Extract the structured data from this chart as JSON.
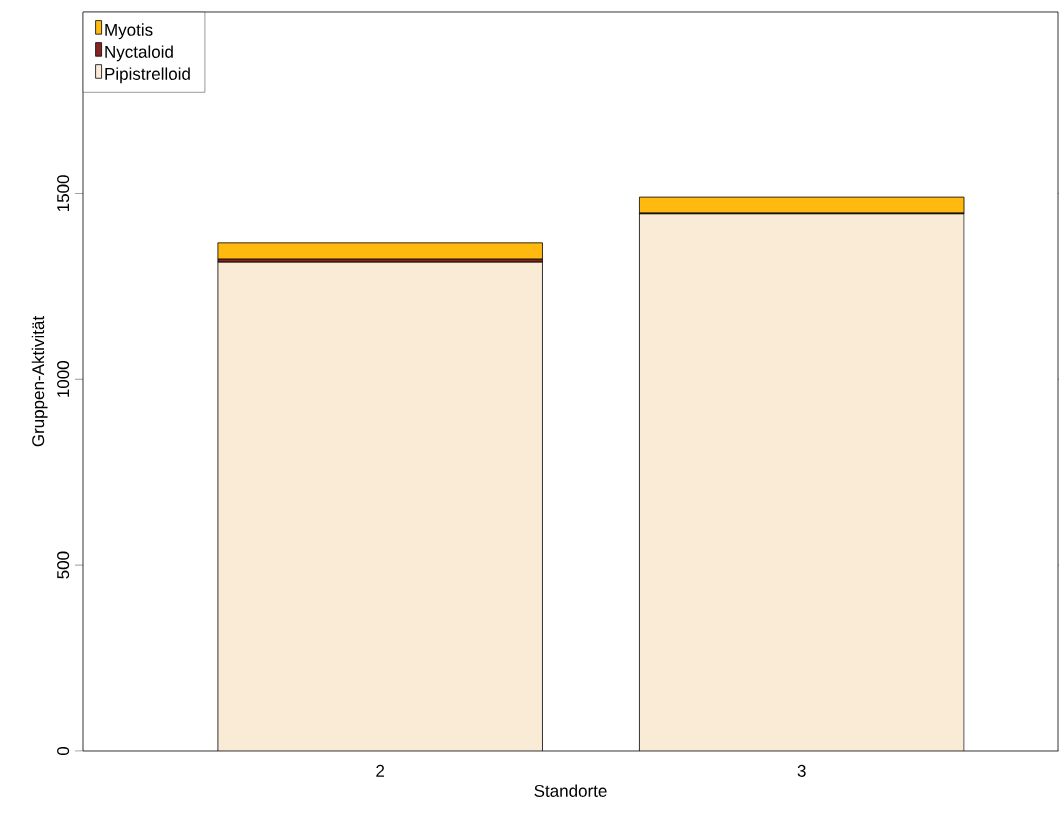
{
  "chart_data": {
    "type": "bar",
    "stacked": true,
    "xlabel": "Standorte",
    "ylabel": "Gruppen-Aktivität",
    "categories": [
      "2",
      "3"
    ],
    "series": [
      {
        "name": "Pipistrelloid",
        "color": "#faebd7",
        "values": [
          1315,
          1445
        ]
      },
      {
        "name": "Nyctaloid",
        "color": "#8b2323",
        "values": [
          8,
          2
        ]
      },
      {
        "name": "Myotis",
        "color": "#ffb90f",
        "values": [
          44,
          43
        ]
      }
    ],
    "ylim": [
      0,
      1988
    ],
    "yticks": [
      0,
      500,
      1000,
      1500
    ],
    "legend": "top left",
    "grid": false
  }
}
